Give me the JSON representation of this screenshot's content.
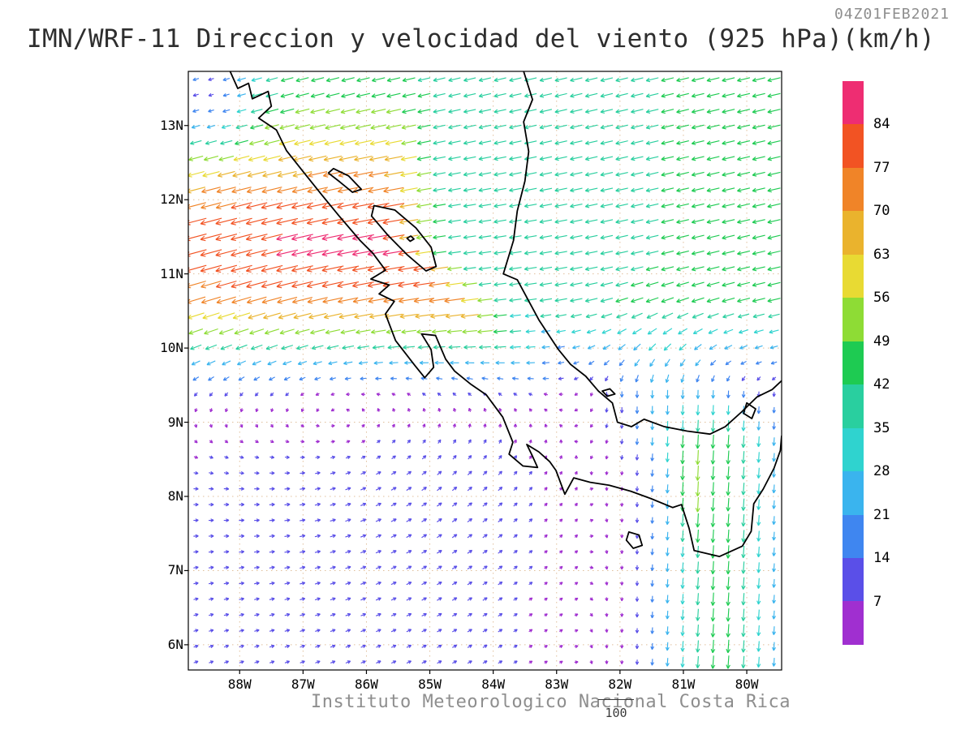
{
  "header": {
    "title": "IMN/WRF-11 Direccion y velocidad del viento (925 hPa)(km/h)",
    "timestamp": "04Z01FEB2021"
  },
  "footer": {
    "caption": "Instituto Meteorologico Nacional Costa Rica",
    "reference_value": "100"
  },
  "chart_data": {
    "type": "vector_field",
    "title": "IMN/WRF-11 Direccion y velocidad del viento (925 hPa)(km/h)",
    "model": "IMN/WRF-11",
    "variable": "Direccion y velocidad del viento",
    "level": "925 hPa",
    "units": "km/h",
    "valid_time": "04Z01FEB2021",
    "lon_range": [
      -88.81,
      -79.45
    ],
    "lat_range": [
      5.66,
      13.73
    ],
    "x_axis": {
      "ticks": [
        "88W",
        "87W",
        "86W",
        "85W",
        "84W",
        "83W",
        "82W",
        "81W",
        "80W"
      ],
      "lons": [
        -88,
        -87,
        -86,
        -85,
        -84,
        -83,
        -82,
        -81,
        -80
      ]
    },
    "y_axis": {
      "ticks": [
        "13N",
        "12N",
        "11N",
        "10N",
        "9N",
        "8N",
        "7N",
        "6N"
      ],
      "lats": [
        13,
        12,
        11,
        10,
        9,
        8,
        7,
        6
      ]
    },
    "reference_vector": 100,
    "grid": {
      "nx": 39,
      "ny": 38
    },
    "color_scale": {
      "boundaries": [
        7,
        14,
        21,
        28,
        35,
        42,
        49,
        56,
        63,
        70,
        77,
        84
      ],
      "colors": [
        "#a02fd0",
        "#5a4fe8",
        "#3f86f0",
        "#3ab4ee",
        "#2fd3cf",
        "#29cf9f",
        "#1ecb52",
        "#8edc35",
        "#e8da33",
        "#eab32d",
        "#f08428",
        "#f25323",
        "#ee2d72"
      ]
    },
    "features": [
      "Papagayo gap jet: strong easterlies 60-85 km/h over the Pacific between 10.5N and 12.5N west of 85W",
      "Caribbean trade easterlies 35-50 km/h north of 10N",
      "Weak winds below 15 km/h (purple) over the Pacific south of 9.5N west of 83W",
      "Panama gap northerlies 30-55 km/h near 80.5W south of 9N"
    ],
    "wind_model": {
      "comment": "u eastward, v northward in km/h; analytic reconstruction of the plotted arrow field",
      "trade": {
        "u": -34,
        "v": -10,
        "lon_grad": -1.0,
        "lat_edge": 9.4,
        "lat_full": 10.6
      },
      "papagayo_jet": {
        "amp_u": -42,
        "amp_v": -7,
        "lat_center": 11.4,
        "lat_width": 1.5,
        "lon_fade_start": -84.9,
        "fade_slope": 1.3,
        "fade_width": 0.7
      },
      "gyre": {
        "lat": 9.6,
        "lon": -86.4,
        "strength": 5,
        "radius": 2.8
      },
      "wake": {
        "u": 7,
        "v": 4,
        "lat_edge": 9.4,
        "lat_full": 8.2,
        "lon_fade_start": -82.6,
        "lon_fade_end": -84.0
      },
      "panama_jet": {
        "amp_u": -3,
        "amp_v": -44,
        "lon_center": -80.4,
        "lon_width": 1.1,
        "lat_edge": 9.7,
        "lat_full": 8.7
      },
      "panama_streak": {
        "amp_v": -16,
        "lon_center": -80.9,
        "lon_width": 0.22,
        "lat_hi": 9.0,
        "lat_lo": 7.3
      },
      "caribbean_notch": {
        "amp_v": -20,
        "lon_center": -81.4,
        "lon_width": 1.1,
        "lat_center": 9.6,
        "lat_width": 0.9
      },
      "nw_calm": {
        "lat": 13.4,
        "lon": -88.5,
        "radius": 0.7,
        "floor": 0.25
      }
    },
    "coastlines": [
      {
        "name": "pacific-coast",
        "closed": false,
        "points": [
          [
            -88.15,
            13.73
          ],
          [
            -88.03,
            13.5
          ],
          [
            -87.86,
            13.57
          ],
          [
            -87.8,
            13.36
          ],
          [
            -87.55,
            13.46
          ],
          [
            -87.5,
            13.26
          ],
          [
            -87.7,
            13.1
          ],
          [
            -87.42,
            12.94
          ],
          [
            -87.26,
            12.66
          ],
          [
            -87.0,
            12.38
          ],
          [
            -86.7,
            12.06
          ],
          [
            -86.44,
            11.79
          ],
          [
            -86.1,
            11.45
          ],
          [
            -85.9,
            11.28
          ],
          [
            -85.7,
            11.05
          ],
          [
            -85.93,
            10.93
          ],
          [
            -85.64,
            10.85
          ],
          [
            -85.8,
            10.73
          ],
          [
            -85.56,
            10.63
          ],
          [
            -85.7,
            10.46
          ],
          [
            -85.54,
            10.1
          ],
          [
            -85.24,
            9.77
          ],
          [
            -85.08,
            9.6
          ],
          [
            -84.94,
            9.74
          ],
          [
            -84.98,
            9.98
          ],
          [
            -85.13,
            10.19
          ],
          [
            -84.91,
            10.17
          ],
          [
            -84.81,
            9.97
          ],
          [
            -84.75,
            9.85
          ],
          [
            -84.61,
            9.69
          ],
          [
            -84.35,
            9.51
          ],
          [
            -84.11,
            9.37
          ],
          [
            -83.85,
            9.07
          ],
          [
            -83.69,
            8.73
          ],
          [
            -83.75,
            8.57
          ],
          [
            -83.53,
            8.41
          ],
          [
            -83.3,
            8.39
          ],
          [
            -83.39,
            8.56
          ],
          [
            -83.47,
            8.7
          ],
          [
            -83.28,
            8.6
          ],
          [
            -83.11,
            8.47
          ],
          [
            -83.01,
            8.35
          ],
          [
            -82.87,
            8.03
          ],
          [
            -82.73,
            8.25
          ],
          [
            -82.47,
            8.19
          ],
          [
            -82.17,
            8.15
          ],
          [
            -81.83,
            8.07
          ],
          [
            -81.51,
            7.97
          ],
          [
            -81.17,
            7.85
          ],
          [
            -81.03,
            7.89
          ],
          [
            -80.91,
            7.57
          ],
          [
            -80.83,
            7.27
          ],
          [
            -80.43,
            7.19
          ],
          [
            -80.07,
            7.33
          ],
          [
            -79.93,
            7.53
          ],
          [
            -79.89,
            7.9
          ],
          [
            -79.74,
            8.1
          ],
          [
            -79.57,
            8.38
          ],
          [
            -79.47,
            8.62
          ],
          [
            -79.45,
            8.82
          ]
        ]
      },
      {
        "name": "caribbean-coast",
        "closed": false,
        "points": [
          [
            -83.52,
            13.73
          ],
          [
            -83.38,
            13.35
          ],
          [
            -83.52,
            13.05
          ],
          [
            -83.44,
            12.65
          ],
          [
            -83.5,
            12.25
          ],
          [
            -83.62,
            11.85
          ],
          [
            -83.68,
            11.45
          ],
          [
            -83.84,
            11.0
          ],
          [
            -83.62,
            10.92
          ],
          [
            -83.28,
            10.38
          ],
          [
            -82.98,
            9.99
          ],
          [
            -82.78,
            9.78
          ],
          [
            -82.54,
            9.62
          ],
          [
            -82.34,
            9.42
          ],
          [
            -82.12,
            9.26
          ],
          [
            -82.04,
            9.0
          ],
          [
            -81.82,
            8.94
          ],
          [
            -81.62,
            9.04
          ],
          [
            -81.3,
            8.94
          ],
          [
            -80.94,
            8.88
          ],
          [
            -80.58,
            8.84
          ],
          [
            -80.34,
            8.94
          ],
          [
            -80.08,
            9.14
          ],
          [
            -79.84,
            9.34
          ],
          [
            -79.6,
            9.44
          ],
          [
            -79.45,
            9.56
          ]
        ]
      },
      {
        "name": "lake-nicaragua",
        "closed": true,
        "points": [
          [
            -85.88,
            11.92
          ],
          [
            -85.55,
            11.86
          ],
          [
            -85.22,
            11.62
          ],
          [
            -84.98,
            11.36
          ],
          [
            -84.9,
            11.1
          ],
          [
            -85.06,
            11.04
          ],
          [
            -85.36,
            11.26
          ],
          [
            -85.66,
            11.52
          ],
          [
            -85.92,
            11.78
          ]
        ]
      },
      {
        "name": "lake-managua",
        "closed": true,
        "points": [
          [
            -86.52,
            12.42
          ],
          [
            -86.28,
            12.32
          ],
          [
            -86.08,
            12.14
          ],
          [
            -86.22,
            12.1
          ],
          [
            -86.42,
            12.24
          ],
          [
            -86.6,
            12.36
          ]
        ]
      },
      {
        "name": "ometepe-island",
        "closed": true,
        "points": [
          [
            -85.36,
            11.48
          ],
          [
            -85.3,
            11.51
          ],
          [
            -85.25,
            11.47
          ],
          [
            -85.31,
            11.44
          ]
        ]
      },
      {
        "name": "coiba-island",
        "closed": true,
        "points": [
          [
            -81.86,
            7.52
          ],
          [
            -81.7,
            7.48
          ],
          [
            -81.65,
            7.34
          ],
          [
            -81.79,
            7.3
          ],
          [
            -81.9,
            7.41
          ]
        ]
      },
      {
        "name": "bocas-islet",
        "closed": true,
        "points": [
          [
            -82.28,
            9.42
          ],
          [
            -82.16,
            9.45
          ],
          [
            -82.08,
            9.38
          ],
          [
            -82.2,
            9.35
          ]
        ]
      },
      {
        "name": "gatun-lake",
        "closed": true,
        "points": [
          [
            -80.0,
            9.26
          ],
          [
            -79.86,
            9.18
          ],
          [
            -79.92,
            9.05
          ],
          [
            -80.05,
            9.12
          ]
        ]
      }
    ]
  }
}
